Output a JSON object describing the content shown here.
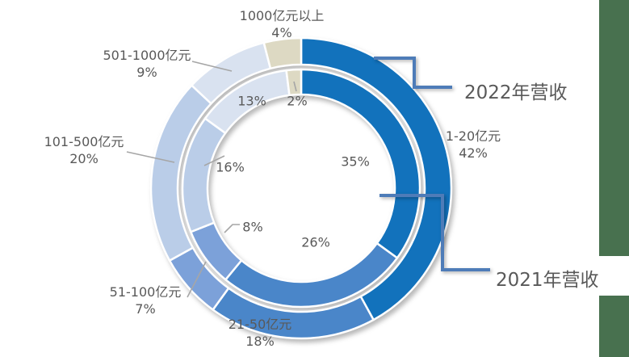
{
  "chart_data": {
    "type": "donut",
    "title": "",
    "categories": [
      "1-20亿元",
      "21-50亿元",
      "51-100亿元",
      "101-500亿元",
      "501-1000亿元",
      "1000亿元以上"
    ],
    "series": [
      {
        "name": "2022年营收",
        "ring": "outer",
        "values": [
          42,
          18,
          7,
          20,
          9,
          4
        ]
      },
      {
        "name": "2021年营收",
        "ring": "inner",
        "values": [
          35,
          26,
          8,
          16,
          13,
          2
        ]
      }
    ],
    "unit": "%",
    "colors": [
      "#1272BC",
      "#4A86C9",
      "#7CA1D9",
      "#BACDE8",
      "#D9E2F0",
      "#DDD9C3"
    ],
    "start_angle_deg": 0,
    "direction": "clockwise",
    "legend_position": "callout-brackets",
    "outer_labels": [
      {
        "name": "1-20亿元",
        "pct": "42%"
      },
      {
        "name": "21-50亿元",
        "pct": "18%"
      },
      {
        "name": "51-100亿元",
        "pct": "7%"
      },
      {
        "name": "101-500亿元",
        "pct": "20%"
      },
      {
        "name": "501-1000亿元",
        "pct": "9%"
      },
      {
        "name": "1000亿元以上",
        "pct": "4%"
      }
    ],
    "inner_labels": [
      "35%",
      "26%",
      "8%",
      "16%",
      "13%",
      "2%"
    ],
    "ring_callouts": {
      "outer": "2022年营收",
      "inner": "2021年营收"
    }
  },
  "decor": {
    "sidebar_color": "#48714F",
    "callout_line_color": "#4E7CB8",
    "leader_line_color": "#A6A6A6",
    "text_color": "#595959",
    "wedge_border_color": "#FFFFFF"
  }
}
